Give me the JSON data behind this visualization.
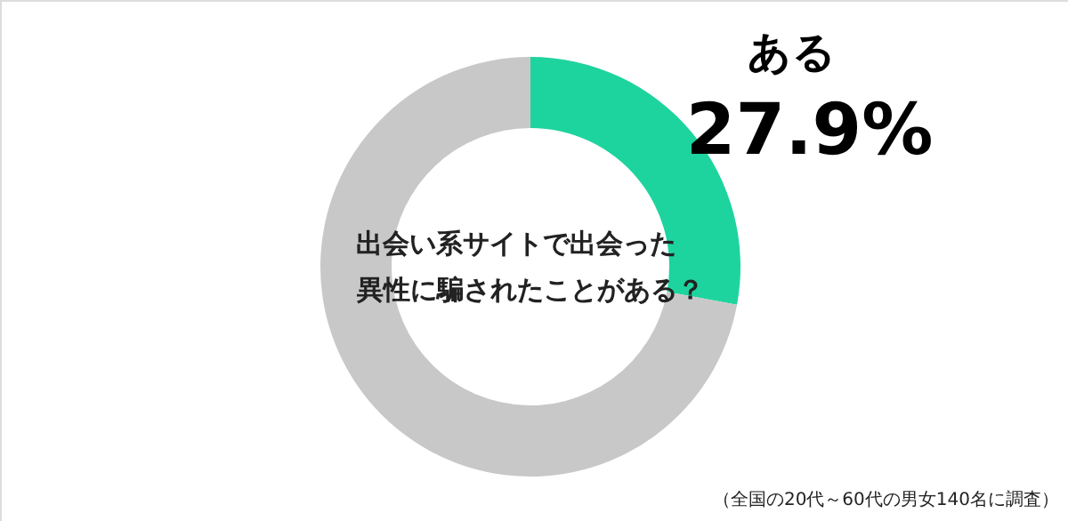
{
  "chart_data": {
    "type": "donut",
    "title": "出会い系サイトで出会った異性に騙されたことがある？",
    "categories": [
      "ある",
      null
    ],
    "values": [
      27.9,
      72.1
    ],
    "colors": [
      "#1ed49e",
      "#c8c8c8"
    ],
    "value_labels": [
      "27.9%",
      null
    ],
    "annotations": [
      "（全国の20代～60代の男女140名に調査）"
    ]
  }
}
